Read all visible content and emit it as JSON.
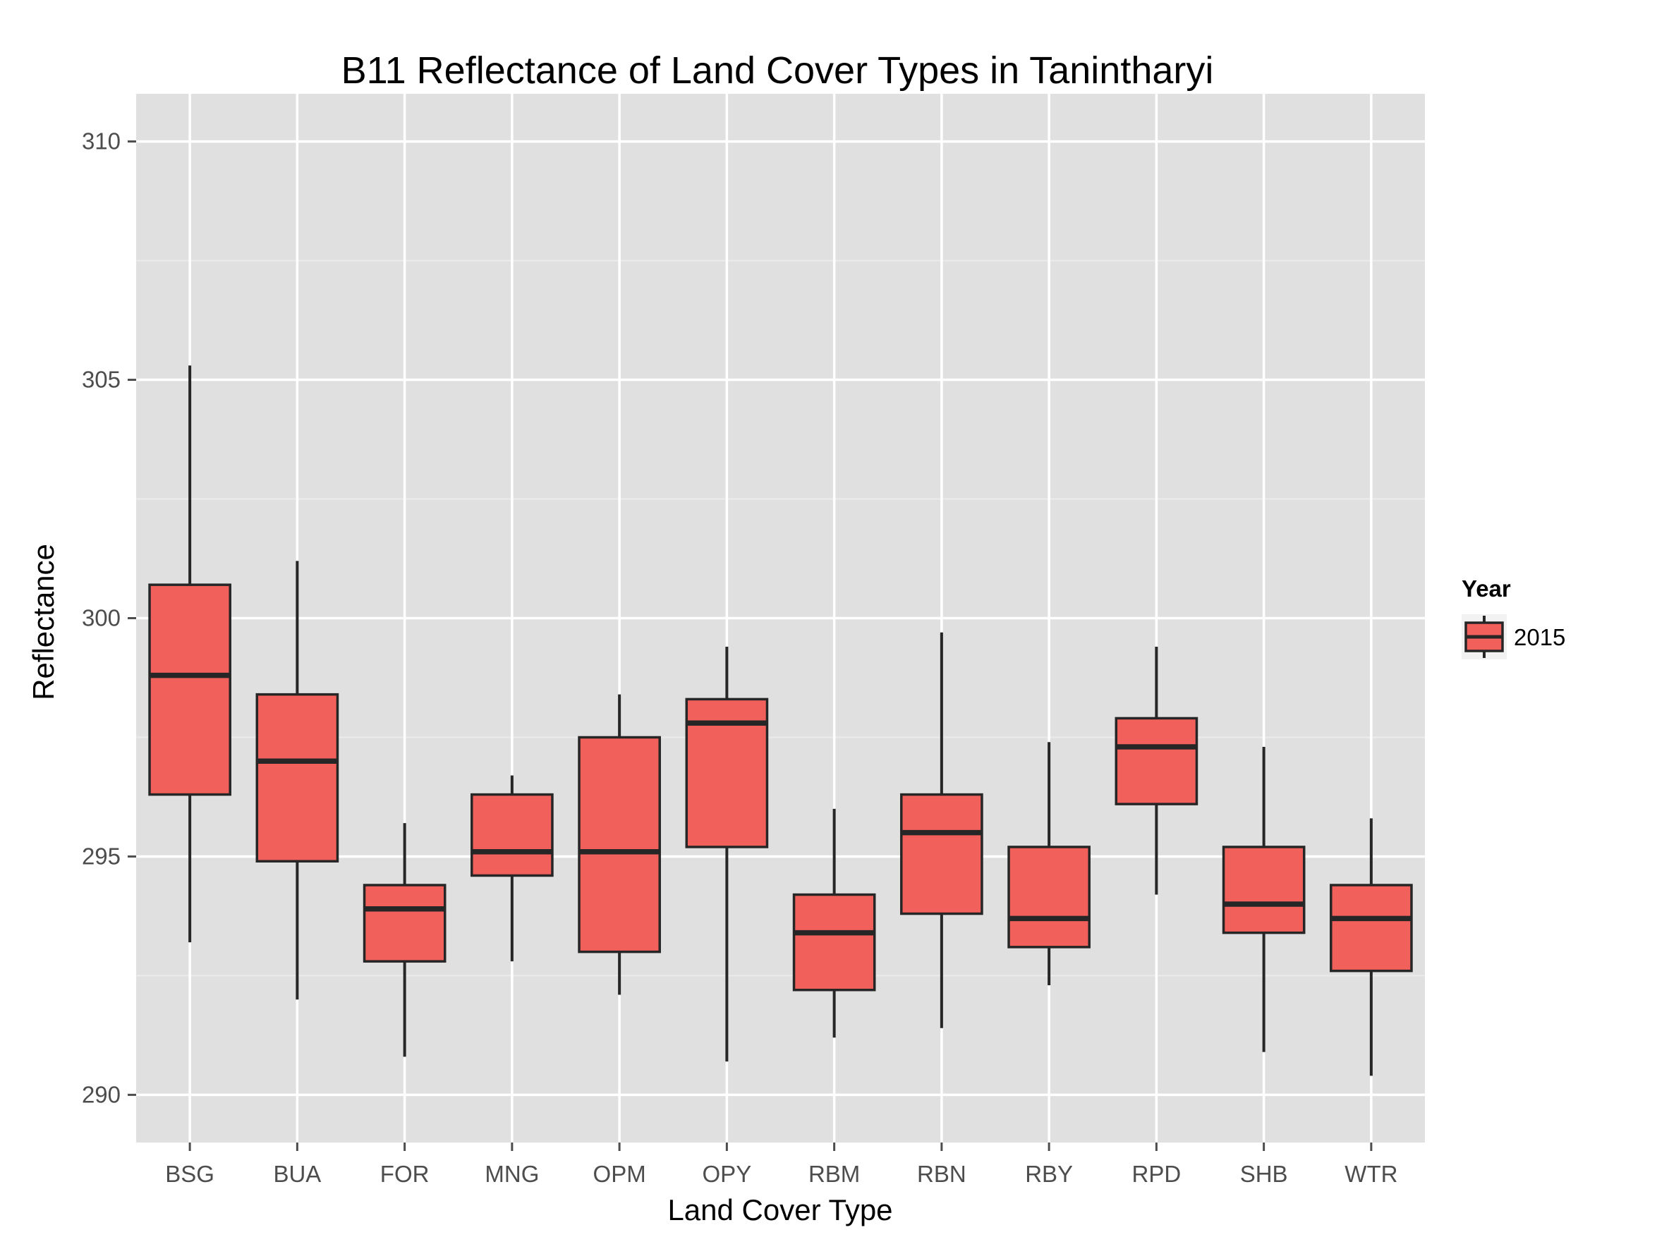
{
  "chart_data": {
    "type": "box",
    "title": "B11 Reflectance of Land Cover Types in Tanintharyi",
    "xlabel": "Land Cover Type",
    "ylabel": "Reflectance",
    "ylim": [
      289,
      311
    ],
    "yticks": [
      290,
      295,
      300,
      305,
      310
    ],
    "grid": true,
    "legend": {
      "title": "Year",
      "placement": "right",
      "entries": [
        "2015"
      ]
    },
    "colors": {
      "box_fill": "#F2605C",
      "box_stroke": "#262626",
      "panel_bg": "#E0E0E0",
      "grid_major": "#FFFFFF",
      "grid_minor": "#EBEBEB"
    },
    "categories": [
      "BSG",
      "BUA",
      "FOR",
      "MNG",
      "OPM",
      "OPY",
      "RBM",
      "RBN",
      "RBY",
      "RPD",
      "SHB",
      "WTR"
    ],
    "series": [
      {
        "name": "2015",
        "boxes": [
          {
            "category": "BSG",
            "min": 293.2,
            "q1": 296.3,
            "median": 298.8,
            "q3": 300.7,
            "max": 305.3
          },
          {
            "category": "BUA",
            "min": 292.0,
            "q1": 294.9,
            "median": 297.0,
            "q3": 298.4,
            "max": 301.2
          },
          {
            "category": "FOR",
            "min": 290.8,
            "q1": 292.8,
            "median": 293.9,
            "q3": 294.4,
            "max": 295.7
          },
          {
            "category": "MNG",
            "min": 292.8,
            "q1": 294.6,
            "median": 295.1,
            "q3": 296.3,
            "max": 296.7
          },
          {
            "category": "OPM",
            "min": 292.1,
            "q1": 293.0,
            "median": 295.1,
            "q3": 297.5,
            "max": 298.4
          },
          {
            "category": "OPY",
            "min": 290.7,
            "q1": 295.2,
            "median": 297.8,
            "q3": 298.3,
            "max": 299.4
          },
          {
            "category": "RBM",
            "min": 291.2,
            "q1": 292.2,
            "median": 293.4,
            "q3": 294.2,
            "max": 296.0
          },
          {
            "category": "RBN",
            "min": 291.4,
            "q1": 293.8,
            "median": 295.5,
            "q3": 296.3,
            "max": 299.7
          },
          {
            "category": "RBY",
            "min": 292.3,
            "q1": 293.1,
            "median": 293.7,
            "q3": 295.2,
            "max": 297.4
          },
          {
            "category": "RPD",
            "min": 294.2,
            "q1": 296.1,
            "median": 297.3,
            "q3": 297.9,
            "max": 299.4
          },
          {
            "category": "SHB",
            "min": 290.9,
            "q1": 293.4,
            "median": 294.0,
            "q3": 295.2,
            "max": 297.3
          },
          {
            "category": "WTR",
            "min": 290.4,
            "q1": 292.6,
            "median": 293.7,
            "q3": 294.4,
            "max": 295.8
          }
        ]
      }
    ]
  }
}
